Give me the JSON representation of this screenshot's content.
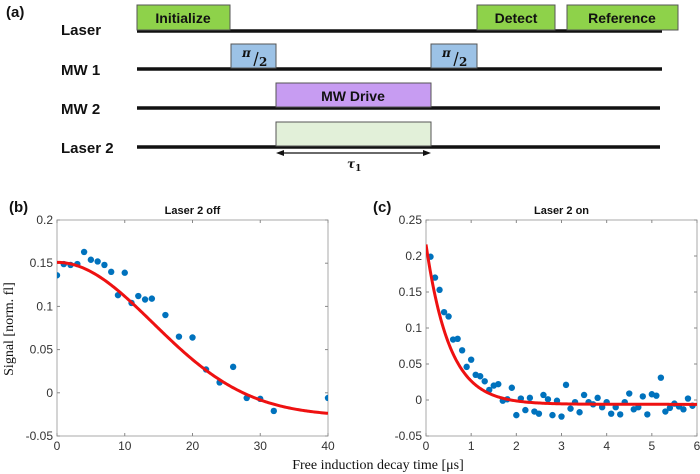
{
  "panel_labels": {
    "a": "(a)",
    "b": "(b)",
    "c": "(c)"
  },
  "sequence": {
    "rows": [
      {
        "label": "Laser"
      },
      {
        "label": "MW 1"
      },
      {
        "label": "MW 2"
      },
      {
        "label": "Laser 2"
      }
    ],
    "blocks": {
      "initialize": "Initialize",
      "detect": "Detect",
      "reference": "Reference",
      "pi_half_1_num": "π",
      "pi_half_1_den": "2",
      "pi_half_2_num": "π",
      "pi_half_2_den": "2",
      "mw_drive": "MW Drive",
      "laser2_pulse": ""
    },
    "tau_label": "τ",
    "tau_sub": "1",
    "colors": {
      "laser": "#8ed24a",
      "mw1": "#9cc2e6",
      "mw2": "#c79cf2",
      "laser2": "#e2f0d9"
    }
  },
  "shared_xlabel": "Free induction decay time [μs]",
  "chart_data": [
    {
      "type": "scatter",
      "title": "Laser 2 off",
      "xlabel": "Free induction decay time [μs]",
      "ylabel": "Signal [norm. fl]",
      "xlim": [
        0,
        40
      ],
      "ylim": [
        -0.05,
        0.2
      ],
      "xticks": [
        0,
        10,
        20,
        30,
        40
      ],
      "yticks": [
        -0.05,
        0,
        0.05,
        0.1,
        0.15,
        0.2
      ],
      "xtick_labels": [
        "0",
        "10",
        "20",
        "30",
        "40"
      ],
      "ytick_labels": [
        "-0.05",
        "0",
        "0.05",
        "0.1",
        "0.15",
        "0.2"
      ],
      "grid": false,
      "series": [
        {
          "name": "data",
          "kind": "points",
          "color": "#0072bd",
          "x": [
            0,
            1,
            2,
            3,
            4,
            5,
            6,
            7,
            8,
            9,
            10,
            11,
            12,
            13,
            14,
            16,
            18,
            20,
            22,
            24,
            26,
            28,
            30,
            32,
            40
          ],
          "y": [
            0.136,
            0.149,
            0.148,
            0.149,
            0.163,
            0.154,
            0.152,
            0.148,
            0.14,
            0.113,
            0.139,
            0.104,
            0.112,
            0.108,
            0.109,
            0.09,
            0.065,
            0.064,
            0.027,
            0.012,
            0.03,
            -0.006,
            -0.007,
            -0.021,
            -0.006
          ]
        },
        {
          "name": "fit",
          "kind": "gaussian-fit",
          "color": "#ee1111",
          "model": "A*exp(-(x/T)^2)+C",
          "A": 0.178,
          "T": 20.0,
          "C": -0.027
        }
      ]
    },
    {
      "type": "scatter",
      "title": "Laser 2 on",
      "xlabel": "Free induction decay time [μs]",
      "ylabel": "",
      "xlim": [
        0,
        6
      ],
      "ylim": [
        -0.05,
        0.25
      ],
      "xticks": [
        0,
        1,
        2,
        3,
        4,
        5,
        6
      ],
      "yticks": [
        -0.05,
        0,
        0.05,
        0.1,
        0.15,
        0.2,
        0.25
      ],
      "xtick_labels": [
        "0",
        "1",
        "2",
        "3",
        "4",
        "5",
        "6"
      ],
      "ytick_labels": [
        "-0.05",
        "0",
        "0.05",
        "0.1",
        "0.15",
        "0.2",
        "0.25"
      ],
      "grid": false,
      "series": [
        {
          "name": "data",
          "kind": "points",
          "color": "#0072bd",
          "x": [
            0.1,
            0.2,
            0.3,
            0.4,
            0.5,
            0.6,
            0.7,
            0.8,
            0.9,
            1.0,
            1.1,
            1.2,
            1.3,
            1.4,
            1.5,
            1.6,
            1.7,
            1.8,
            1.9,
            2.0,
            2.1,
            2.2,
            2.3,
            2.4,
            2.5,
            2.6,
            2.7,
            2.8,
            2.9,
            3.0,
            3.1,
            3.2,
            3.3,
            3.4,
            3.5,
            3.6,
            3.7,
            3.8,
            3.9,
            4.0,
            4.1,
            4.2,
            4.3,
            4.4,
            4.5,
            4.6,
            4.7,
            4.8,
            4.9,
            5.0,
            5.1,
            5.2,
            5.3,
            5.4,
            5.5,
            5.6,
            5.7,
            5.8,
            5.9
          ],
          "y": [
            0.199,
            0.17,
            0.153,
            0.122,
            0.116,
            0.084,
            0.085,
            0.069,
            0.046,
            0.056,
            0.035,
            0.033,
            0.026,
            0.014,
            0.02,
            0.022,
            -0.001,
            0.001,
            0.017,
            -0.021,
            0.002,
            -0.014,
            0.003,
            -0.016,
            -0.019,
            0.007,
            0.001,
            -0.021,
            -0.001,
            -0.023,
            0.021,
            -0.012,
            -0.003,
            -0.017,
            0.007,
            -0.003,
            -0.006,
            0.003,
            -0.01,
            -0.003,
            -0.019,
            -0.01,
            -0.02,
            -0.003,
            0.009,
            -0.013,
            -0.01,
            0.005,
            -0.02,
            0.008,
            0.006,
            0.031,
            -0.016,
            -0.011,
            -0.005,
            -0.009,
            -0.013,
            0.002,
            -0.008
          ],
          "x_extra_note": "uniform ~0.1 μs spacing"
        },
        {
          "name": "fit",
          "kind": "exponential-fit",
          "color": "#ee1111",
          "model": "A*exp(-x/T)+C",
          "A": 0.222,
          "T": 0.52,
          "C": -0.006
        }
      ]
    }
  ]
}
